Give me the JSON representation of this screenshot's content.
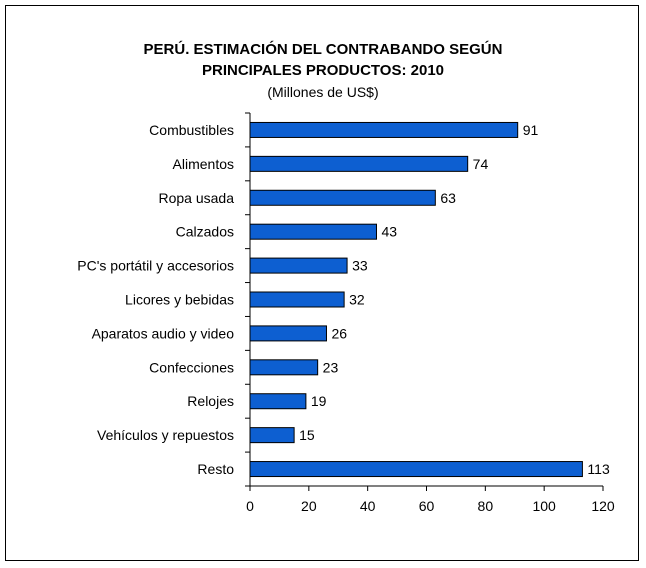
{
  "chart_data": {
    "type": "bar",
    "orientation": "horizontal",
    "title_line1": "PERÚ. ESTIMACIÓN DEL CONTRABANDO SEGÚN",
    "title_line2": "PRINCIPALES PRODUCTOS: 2010",
    "subtitle": "(Millones de US$)",
    "categories": [
      "Combustibles",
      "Alimentos",
      "Ropa usada",
      "Calzados",
      "PC's portátil y accesorios",
      "Licores y bebidas",
      "Aparatos audio y video",
      "Confecciones",
      "Relojes",
      "Vehículos y repuestos",
      "Resto"
    ],
    "values": [
      91,
      74,
      63,
      43,
      33,
      32,
      26,
      23,
      19,
      15,
      113
    ],
    "xlim": [
      0,
      120
    ],
    "xticks": [
      "0",
      "20",
      "40",
      "60",
      "80",
      "100",
      "120"
    ],
    "bar_color": "#0d5fd1",
    "grid": false,
    "legend": "none"
  }
}
